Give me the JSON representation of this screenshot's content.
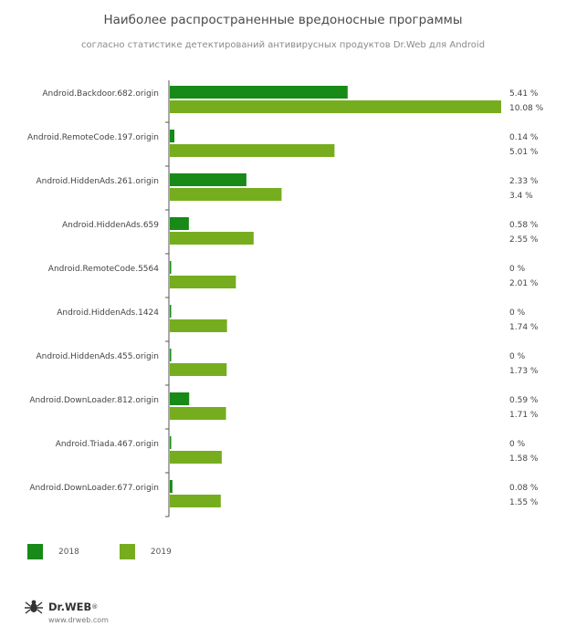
{
  "header": {
    "title": "Наиболее распространенные вредоносные программы",
    "subtitle": "согласно статистике детектирований антивирусных продуктов Dr.Web для Android"
  },
  "colors": {
    "s2018": "#178a17",
    "s2019": "#76ad1e",
    "axis": "#555555"
  },
  "chart_data": {
    "type": "bar",
    "orientation": "horizontal",
    "categories": [
      "Android.Backdoor.682.origin",
      "Android.RemoteCode.197.origin",
      "Android.HiddenAds.261.origin",
      "Android.HiddenAds.659",
      "Android.RemoteCode.5564",
      "Android.HiddenAds.1424",
      "Android.HiddenAds.455.origin",
      "Android.DownLoader.812.origin",
      "Android.Triada.467.origin",
      "Android.DownLoader.677.origin"
    ],
    "series": [
      {
        "name": "2018",
        "values": [
          5.41,
          0.14,
          2.33,
          0.58,
          0,
          0,
          0,
          0.59,
          0,
          0.08
        ],
        "labels": [
          "5.41 %",
          "0.14 %",
          "2.33 %",
          "0.58 %",
          "0 %",
          "0 %",
          "0 %",
          "0.59 %",
          "0 %",
          "0.08 %"
        ]
      },
      {
        "name": "2019",
        "values": [
          10.08,
          5.01,
          3.4,
          2.55,
          2.01,
          1.74,
          1.73,
          1.71,
          1.58,
          1.55
        ],
        "labels": [
          "10.08 %",
          "5.01 %",
          "3.4 %",
          "2.55 %",
          "2.01 %",
          "1.74 %",
          "1.73 %",
          "1.71 %",
          "1.58 %",
          "1.55 %"
        ]
      }
    ],
    "xlim": [
      0,
      10.08
    ],
    "legend": "bottom-left",
    "grid": false
  },
  "legend": {
    "items": [
      {
        "label": "2018"
      },
      {
        "label": "2019"
      }
    ]
  },
  "footer": {
    "brand": "Dr.WEB",
    "mark": "®",
    "url": "www.drweb.com"
  }
}
